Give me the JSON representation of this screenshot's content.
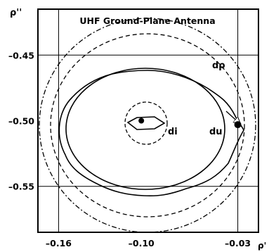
{
  "chart_data": {
    "type": "diagram",
    "title": "UHF Ground-Plane Antenna",
    "xlabel": "ρ'",
    "ylabel": "ρ''",
    "x_ticks": [
      {
        "value": -0.16,
        "label": "–0.16"
      },
      {
        "value": -0.1,
        "label": "–0.10"
      },
      {
        "value": -0.03,
        "label": "–0.03"
      }
    ],
    "y_ticks": [
      {
        "value": -0.45,
        "label": "–0.45"
      },
      {
        "value": -0.5,
        "label": "–0.50"
      },
      {
        "value": -0.55,
        "label": "–0.55"
      }
    ],
    "xlim": [
      -0.175,
      -0.015
    ],
    "ylim": [
      -0.585,
      -0.415
    ],
    "gridlines": {
      "x": [
        -0.16,
        -0.03
      ],
      "y": [
        -0.45,
        -0.55
      ]
    },
    "center_point": {
      "x": -0.1,
      "y": -0.5
    },
    "target_point": {
      "x": -0.03,
      "y": -0.503
    },
    "labels": {
      "drho": "dρ",
      "di": "di",
      "du": "du"
    }
  }
}
